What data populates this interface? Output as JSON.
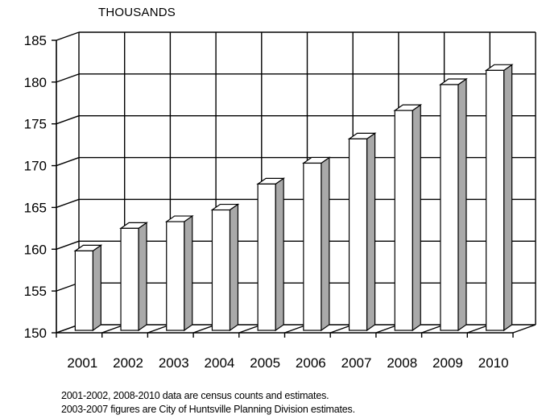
{
  "chart_data": {
    "type": "bar",
    "title": "",
    "unit_label": "THOUSANDS",
    "xlabel": "",
    "ylabel": "",
    "categories": [
      "2001",
      "2002",
      "2003",
      "2004",
      "2005",
      "2006",
      "2007",
      "2008",
      "2009",
      "2010"
    ],
    "values": [
      159.8,
      162.5,
      163.3,
      164.7,
      167.8,
      170.3,
      173.2,
      176.6,
      179.7,
      181.4
    ],
    "ylim": [
      150,
      185
    ],
    "yticks": [
      150,
      155,
      160,
      165,
      170,
      175,
      180,
      185
    ],
    "grid": true,
    "style": "3d-bar",
    "colors": {
      "bar_front": "#ffffff",
      "bar_side": "#a9a9a9",
      "bar_top": "#ffffff",
      "grid": "#000000"
    },
    "notes": [
      "2001-2002, 2008-2010 data are census counts and estimates.",
      "2003-2007 figures are City of Huntsville Planning Division estimates."
    ]
  }
}
